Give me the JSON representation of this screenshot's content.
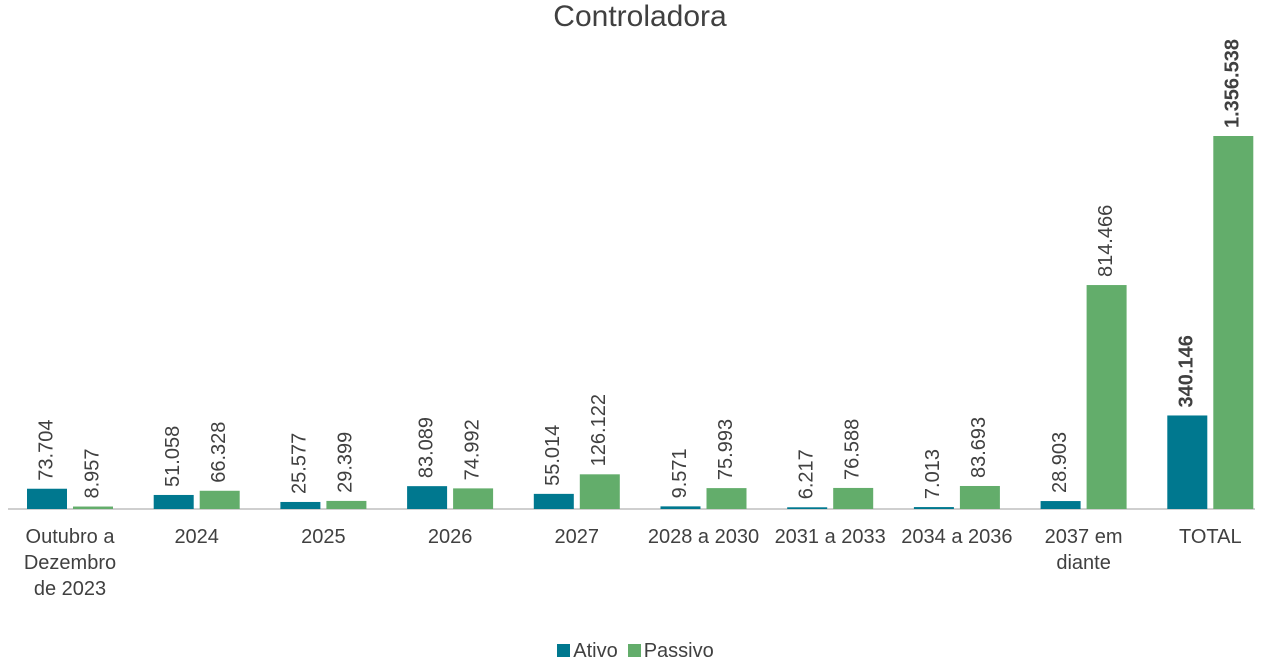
{
  "chart_data": {
    "type": "bar",
    "title": "Controladora",
    "categories": [
      "Outubro a Dezembro de 2023",
      "2024",
      "2025",
      "2026",
      "2027",
      "2028 a 2030",
      "2031 a 2033",
      "2034 a 2036",
      "2037 em diante",
      "TOTAL"
    ],
    "series": [
      {
        "name": "Ativo",
        "color": "#00788f",
        "values": [
          73704,
          51058,
          25577,
          83089,
          55014,
          9571,
          6217,
          7013,
          28903,
          340146
        ],
        "value_labels": [
          "73.704",
          "51.058",
          "25.577",
          "83.089",
          "55.014",
          "9.571",
          "6.217",
          "7.013",
          "28.903",
          "340.146"
        ]
      },
      {
        "name": "Passivo",
        "color": "#63ad6b",
        "values": [
          8957,
          66328,
          29399,
          74992,
          126122,
          75993,
          76588,
          83693,
          814466,
          1356538
        ],
        "value_labels": [
          "8.957",
          "66.328",
          "29.399",
          "74.992",
          "126.122",
          "75.993",
          "76.588",
          "83.693",
          "814.466",
          "1.356.538"
        ]
      }
    ]
  }
}
